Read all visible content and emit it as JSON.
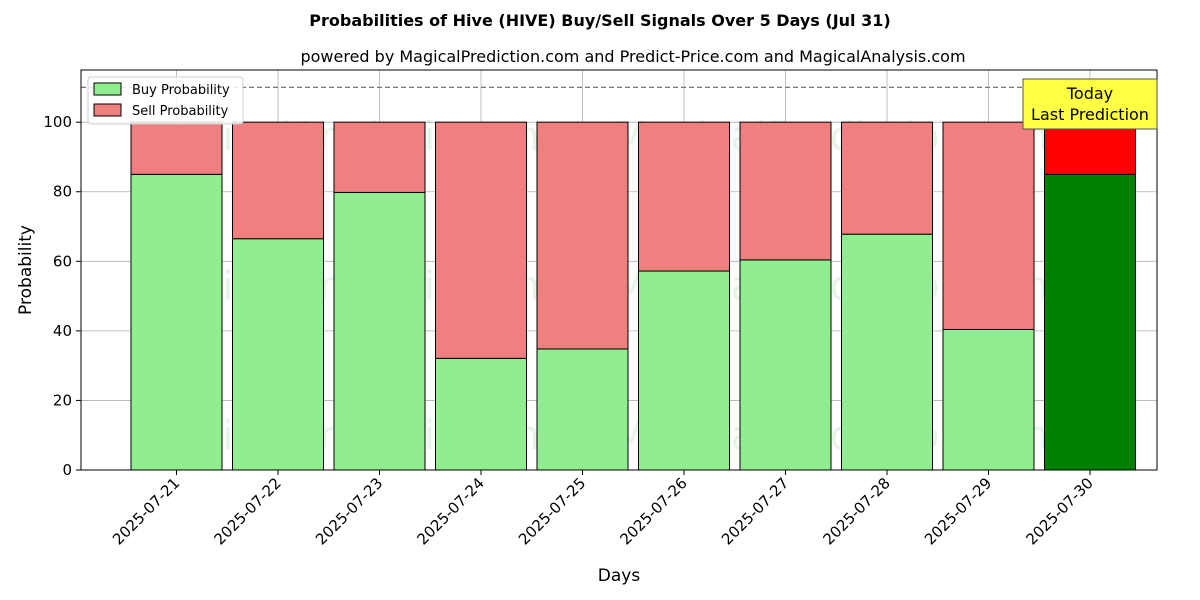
{
  "chart_data": {
    "type": "bar",
    "stacked": true,
    "title": "Probabilities of Hive (HIVE) Buy/Sell Signals Over 5 Days (Jul 31)",
    "subtitle": "powered by MagicalPrediction.com and Predict-Price.com and MagicalAnalysis.com",
    "xlabel": "Days",
    "ylabel": "Probability",
    "ylim": [
      0,
      115
    ],
    "yticks": [
      0,
      20,
      40,
      60,
      80,
      100
    ],
    "reference_line": 110,
    "grid": true,
    "legend_position": "top-left",
    "categories": [
      "2025-07-21",
      "2025-07-22",
      "2025-07-23",
      "2025-07-24",
      "2025-07-25",
      "2025-07-26",
      "2025-07-27",
      "2025-07-28",
      "2025-07-29",
      "2025-07-30"
    ],
    "series": [
      {
        "name": "Buy Probability",
        "values": [
          85,
          66.5,
          79.8,
          32.1,
          34.8,
          57.2,
          60.4,
          67.8,
          40.4,
          85
        ],
        "color": "#90ee90",
        "highlight_color": "#008000"
      },
      {
        "name": "Sell Probability",
        "values": [
          15,
          33.5,
          20.2,
          67.9,
          65.2,
          42.8,
          39.6,
          32.2,
          59.6,
          15
        ],
        "color": "#f08080",
        "highlight_color": "#ff0000"
      }
    ],
    "highlight_index": 9,
    "annotation": {
      "lines": [
        "Today",
        "Last Prediction"
      ],
      "color": "#ffff44"
    },
    "watermarks": [
      "MagicalAnalysis.com",
      "MagicalPrediction.com"
    ]
  }
}
